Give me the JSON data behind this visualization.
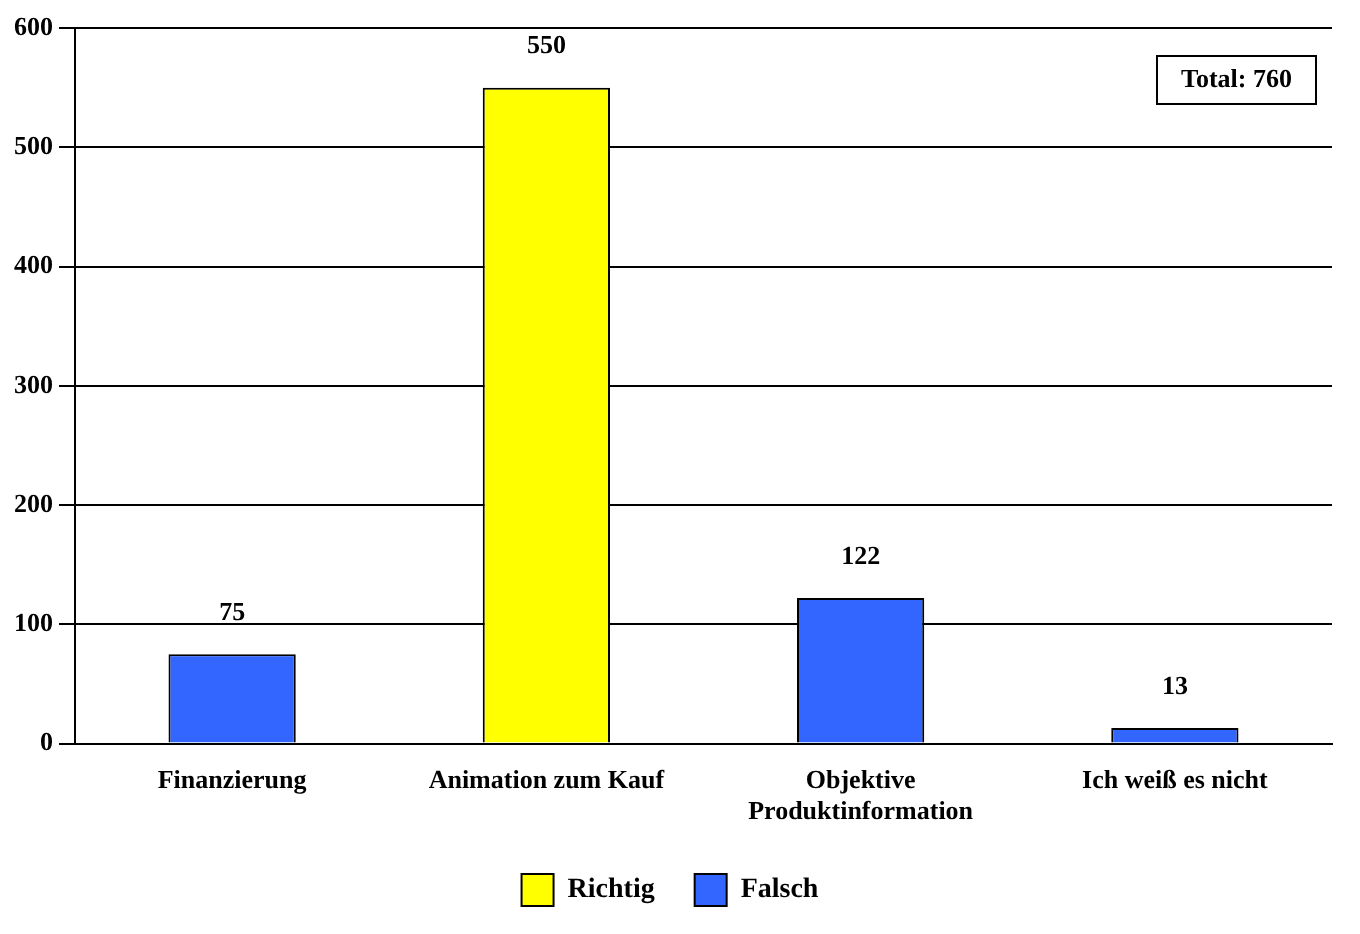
{
  "chart_data": {
    "type": "bar",
    "categories": [
      "Finanzierung",
      "Animation zum Kauf",
      "Objektive Produktinformation",
      "Ich weiß es nicht"
    ],
    "series": [
      {
        "name": "Richtig",
        "color": "#ffff00",
        "values": [
          null,
          550,
          null,
          null
        ]
      },
      {
        "name": "Falsch",
        "color": "#3366ff",
        "values": [
          75,
          null,
          122,
          13
        ]
      }
    ],
    "ylim": [
      0,
      600
    ],
    "yticks": [
      0,
      100,
      200,
      300,
      400,
      500,
      600
    ],
    "grid": "y",
    "legend": "bottom",
    "data_labels": true,
    "annotations": [
      "Total: 760"
    ]
  }
}
